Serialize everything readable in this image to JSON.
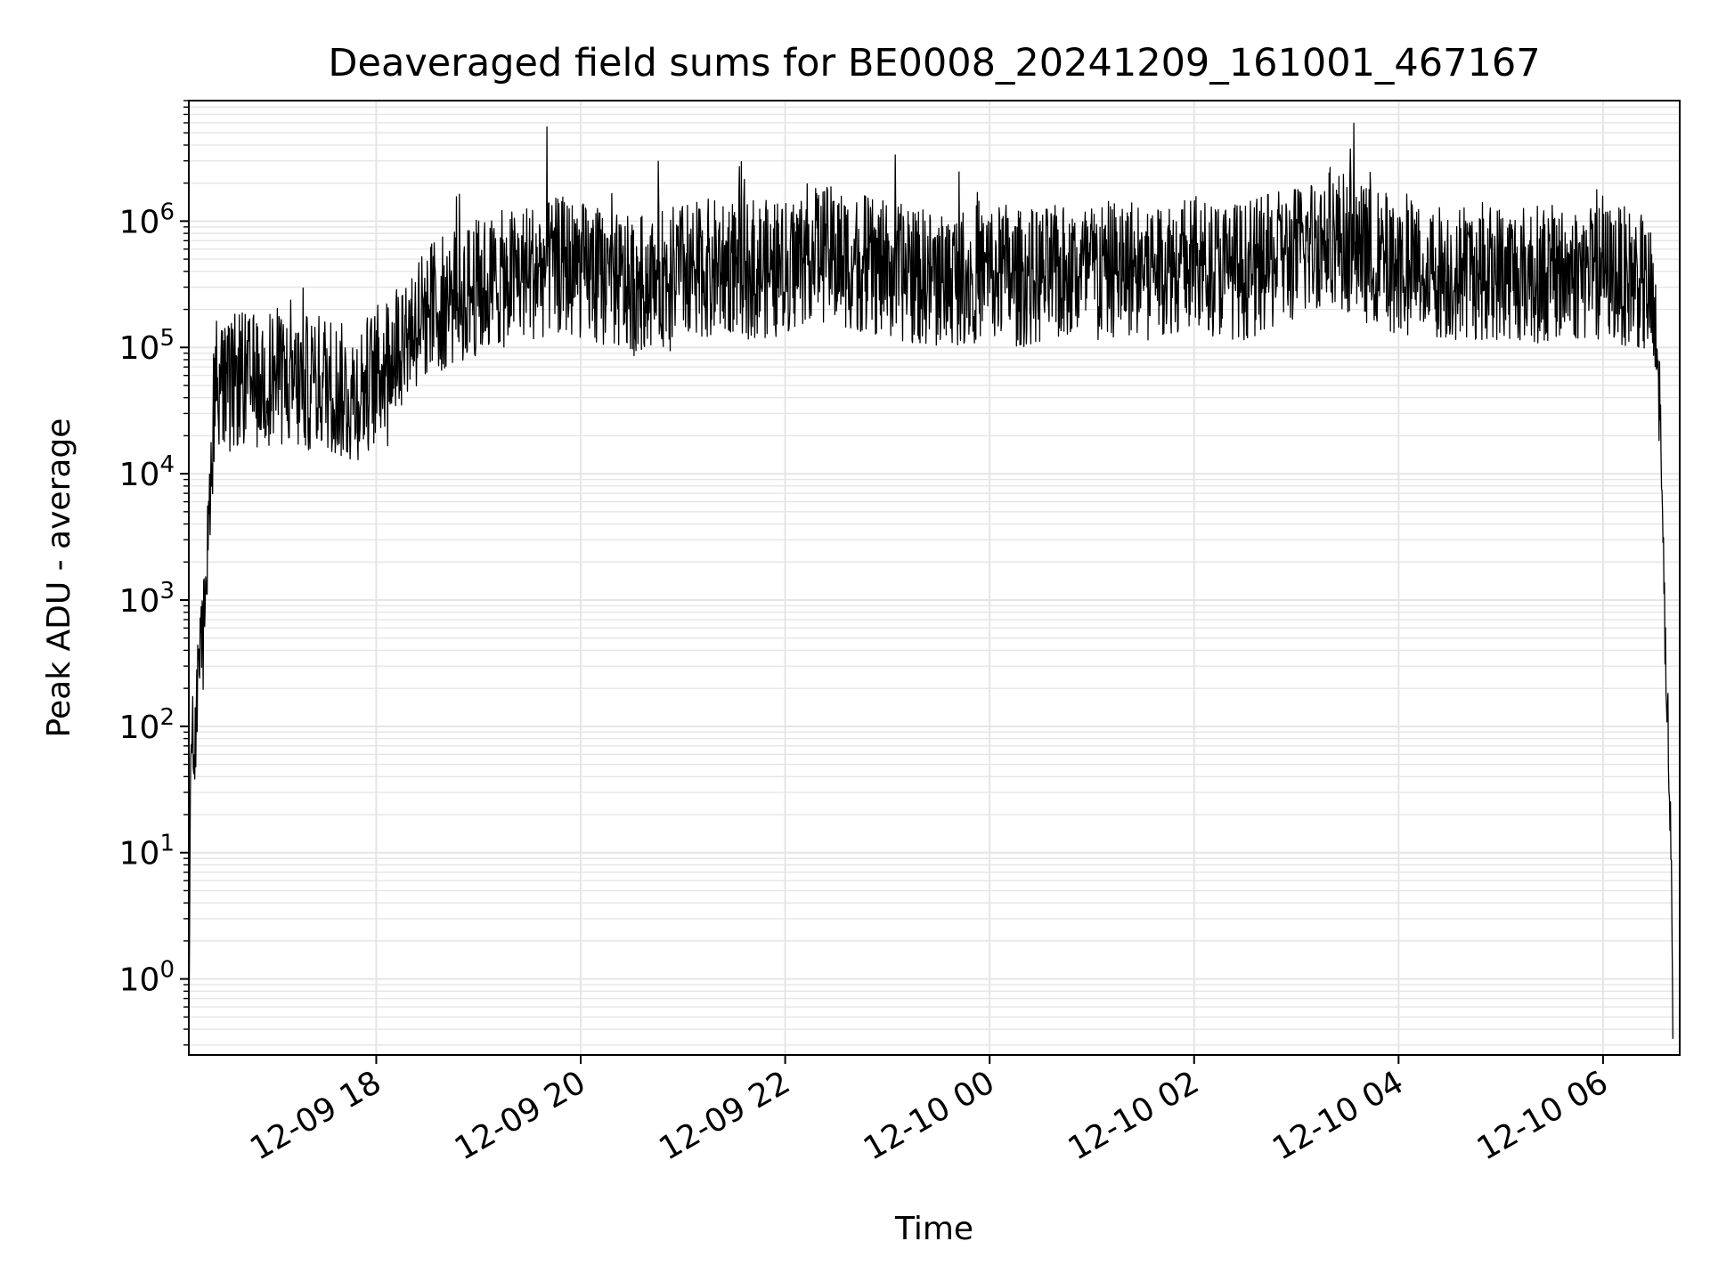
{
  "chart_data": {
    "type": "line",
    "title": "Deaveraged field sums for BE0008_20241209_161001_467167",
    "xlabel": "Time",
    "ylabel": "Peak ADU - average",
    "yscale": "log",
    "xlim": [
      "2024-12-09T16:10",
      "2024-12-10T06:45"
    ],
    "ylim": [
      0.25,
      9000000
    ],
    "grid": true,
    "line_color": "#000000",
    "grid_color": "#e5e5e5",
    "x_ticks": [
      {
        "label": "12-09 18",
        "time": "2024-12-09T18:00"
      },
      {
        "label": "12-09 20",
        "time": "2024-12-09T20:00"
      },
      {
        "label": "12-09 22",
        "time": "2024-12-09T22:00"
      },
      {
        "label": "12-10 00",
        "time": "2024-12-10T00:00"
      },
      {
        "label": "12-10 02",
        "time": "2024-12-10T02:00"
      },
      {
        "label": "12-10 04",
        "time": "2024-12-10T04:00"
      },
      {
        "label": "12-10 06",
        "time": "2024-12-10T06:00"
      }
    ],
    "y_ticks": [
      {
        "base": "10",
        "exp": "0",
        "value": 1
      },
      {
        "base": "10",
        "exp": "1",
        "value": 10
      },
      {
        "base": "10",
        "exp": "2",
        "value": 100
      },
      {
        "base": "10",
        "exp": "3",
        "value": 1000
      },
      {
        "base": "10",
        "exp": "4",
        "value": 10000
      },
      {
        "base": "10",
        "exp": "5",
        "value": 100000
      },
      {
        "base": "10",
        "exp": "6",
        "value": 1000000
      }
    ],
    "series": [
      {
        "x": [
          "2024-12-09T16:10",
          "2024-12-09T16:11",
          "2024-12-09T16:12",
          "2024-12-09T16:13",
          "2024-12-09T16:14",
          "2024-12-09T16:16",
          "2024-12-09T16:18",
          "2024-12-09T16:20",
          "2024-12-09T16:22",
          "2024-12-09T16:25",
          "2024-12-09T16:28",
          "2024-12-09T16:32",
          "2024-12-09T16:36",
          "2024-12-09T16:40",
          "2024-12-09T16:45",
          "2024-12-09T16:50",
          "2024-12-09T17:00",
          "2024-12-09T17:15",
          "2024-12-09T17:30",
          "2024-12-09T17:45",
          "2024-12-09T18:00",
          "2024-12-09T18:15",
          "2024-12-09T18:30",
          "2024-12-09T19:00",
          "2024-12-09T19:30",
          "2024-12-09T19:50",
          "2024-12-09T20:30",
          "2024-12-09T21:00",
          "2024-12-09T21:30",
          "2024-12-09T22:00",
          "2024-12-09T22:15",
          "2024-12-09T23:00",
          "2024-12-09T23:30",
          "2024-12-10T00:00",
          "2024-12-10T00:15",
          "2024-12-10T01:00",
          "2024-12-10T01:30",
          "2024-12-10T02:00",
          "2024-12-10T02:30",
          "2024-12-10T03:00",
          "2024-12-10T03:20",
          "2024-12-10T03:40",
          "2024-12-10T04:00",
          "2024-12-10T04:30",
          "2024-12-10T05:00",
          "2024-12-10T05:30",
          "2024-12-10T06:00",
          "2024-12-10T06:20",
          "2024-12-10T06:28",
          "2024-12-10T06:33",
          "2024-12-10T06:36",
          "2024-12-10T06:38",
          "2024-12-10T06:40",
          "2024-12-10T06:41"
        ],
        "y": [
          0.3,
          50,
          100,
          60,
          100,
          300,
          500,
          1000,
          5000,
          50000,
          60000,
          40000,
          50000,
          60000,
          50000,
          55000,
          60000,
          50000,
          55000,
          40000,
          60000,
          120000,
          200000,
          300000,
          400000,
          450000,
          300000,
          400000,
          450000,
          400000,
          600000,
          400000,
          350000,
          400000,
          350000,
          400000,
          450000,
          450000,
          400000,
          550000,
          800000,
          550000,
          450000,
          400000,
          400000,
          380000,
          400000,
          350000,
          250000,
          50000,
          1000,
          100,
          15,
          0.3
        ]
      }
    ]
  }
}
